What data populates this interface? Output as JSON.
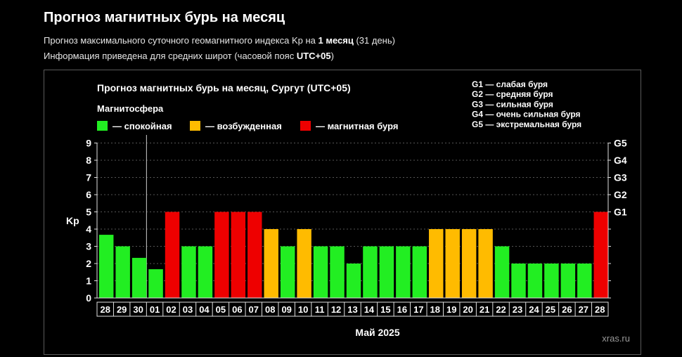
{
  "page": {
    "title": "Прогноз магнитных бурь на месяц",
    "info1_prefix": "Прогноз максимального суточного геомагнитного индекса Kp на ",
    "info1_bold": "1 месяц",
    "info1_suffix": " (31 день)",
    "info2_prefix": "Информация приведена для средних широт (часовой пояс ",
    "info2_bold": "UTC+05",
    "info2_suffix": ")"
  },
  "chart_data": {
    "type": "bar",
    "title": "Прогноз магнитных бурь на месяц, Сургут (UTC+05)",
    "legend_title": "Магнитосфера",
    "legend": [
      {
        "label": "— спокойная",
        "color": "#22ee22"
      },
      {
        "label": "— возбужденная",
        "color": "#ffbb00"
      },
      {
        "label": "— магнитная буря",
        "color": "#ee0000"
      }
    ],
    "storm_levels": [
      "G1 — слабая буря",
      "G2 — средняя буря",
      "G3 — сильная буря",
      "G4 — очень сильная буря",
      "G5 — экстремальная буря"
    ],
    "ylabel": "Kp",
    "xlabel": "Май 2025",
    "ylim": [
      0,
      9
    ],
    "yticks": [
      "0",
      "1",
      "2",
      "3",
      "4",
      "5",
      "6",
      "7",
      "8",
      "9"
    ],
    "right_ticks": [
      {
        "value": 5,
        "label": "G1"
      },
      {
        "value": 6,
        "label": "G2"
      },
      {
        "value": 7,
        "label": "G3"
      },
      {
        "value": 8,
        "label": "G4"
      },
      {
        "value": 9,
        "label": "G5"
      }
    ],
    "categories": [
      "28",
      "29",
      "30",
      "01",
      "02",
      "03",
      "04",
      "05",
      "06",
      "07",
      "08",
      "09",
      "10",
      "11",
      "12",
      "13",
      "14",
      "15",
      "16",
      "17",
      "18",
      "19",
      "20",
      "21",
      "22",
      "23",
      "24",
      "25",
      "26",
      "27",
      "28"
    ],
    "values": [
      3.67,
      3,
      2.33,
      1.67,
      5,
      3,
      3,
      5,
      5,
      5,
      4,
      3,
      4,
      3,
      3,
      2,
      3,
      3,
      3,
      3,
      4,
      4,
      4,
      4,
      3,
      2,
      2,
      2,
      2,
      2,
      5
    ],
    "state": [
      "quiet",
      "quiet",
      "quiet",
      "quiet",
      "storm",
      "quiet",
      "quiet",
      "storm",
      "storm",
      "storm",
      "active",
      "quiet",
      "active",
      "quiet",
      "quiet",
      "quiet",
      "quiet",
      "quiet",
      "quiet",
      "quiet",
      "active",
      "active",
      "active",
      "active",
      "quiet",
      "quiet",
      "quiet",
      "quiet",
      "quiet",
      "quiet",
      "storm"
    ],
    "colors": {
      "quiet": "#22ee22",
      "active": "#ffbb00",
      "storm": "#ee0000"
    },
    "grid": true,
    "month_divider_after": "30",
    "watermark": "xras.ru"
  }
}
